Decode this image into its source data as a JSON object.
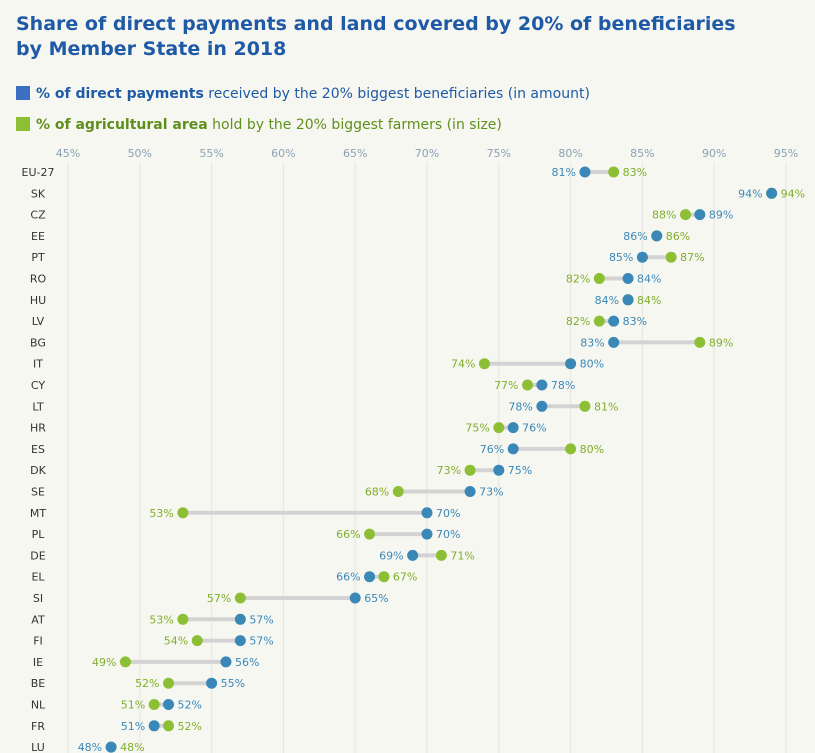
{
  "title_line1": "Share of direct payments and land covered by 20% of beneficiaries",
  "title_line2": "by Member State in 2018",
  "legend": {
    "payments_bold": "% of direct payments",
    "payments_rest": " received by the 20% biggest beneficiaries (in amount)",
    "area_bold": "% of agricultural area",
    "area_rest": " hold by the 20% biggest farmers (in size)"
  },
  "colors": {
    "payments": "#3a88b8",
    "area": "#8dbf35",
    "connector": "#d3d3d3"
  },
  "chart_data": {
    "type": "dumbbell",
    "x_ticks": [
      "45%",
      "50%",
      "55%",
      "60%",
      "65%",
      "70%",
      "75%",
      "80%",
      "85%",
      "90%",
      "95%"
    ],
    "xlim": [
      45,
      95
    ],
    "series": [
      {
        "name": "% of direct payments received by the 20% biggest beneficiaries (in amount)"
      },
      {
        "name": "% of agricultural area hold by the 20% biggest farmers (in size)"
      }
    ],
    "rows": [
      {
        "c": "EU-27",
        "p": 81,
        "a": 83
      },
      {
        "c": "SK",
        "p": 94,
        "a": 94
      },
      {
        "c": "CZ",
        "p": 89,
        "a": 88
      },
      {
        "c": "EE",
        "p": 86,
        "a": 86
      },
      {
        "c": "PT",
        "p": 85,
        "a": 87
      },
      {
        "c": "RO",
        "p": 84,
        "a": 82
      },
      {
        "c": "HU",
        "p": 84,
        "a": 84
      },
      {
        "c": "LV",
        "p": 83,
        "a": 82
      },
      {
        "c": "BG",
        "p": 83,
        "a": 89
      },
      {
        "c": "IT",
        "p": 80,
        "a": 74
      },
      {
        "c": "CY",
        "p": 78,
        "a": 77
      },
      {
        "c": "LT",
        "p": 78,
        "a": 81
      },
      {
        "c": "HR",
        "p": 76,
        "a": 75
      },
      {
        "c": "ES",
        "p": 76,
        "a": 80
      },
      {
        "c": "DK",
        "p": 75,
        "a": 73
      },
      {
        "c": "SE",
        "p": 73,
        "a": 68
      },
      {
        "c": "MT",
        "p": 70,
        "a": 53
      },
      {
        "c": "PL",
        "p": 70,
        "a": 66
      },
      {
        "c": "DE",
        "p": 69,
        "a": 71
      },
      {
        "c": "EL",
        "p": 66,
        "a": 67
      },
      {
        "c": "SI",
        "p": 65,
        "a": 57
      },
      {
        "c": "AT",
        "p": 57,
        "a": 53
      },
      {
        "c": "FI",
        "p": 57,
        "a": 54
      },
      {
        "c": "IE",
        "p": 56,
        "a": 49
      },
      {
        "c": "BE",
        "p": 55,
        "a": 52
      },
      {
        "c": "NL",
        "p": 52,
        "a": 51
      },
      {
        "c": "FR",
        "p": 51,
        "a": 52
      },
      {
        "c": "LU",
        "p": 48,
        "a": 48
      }
    ]
  }
}
